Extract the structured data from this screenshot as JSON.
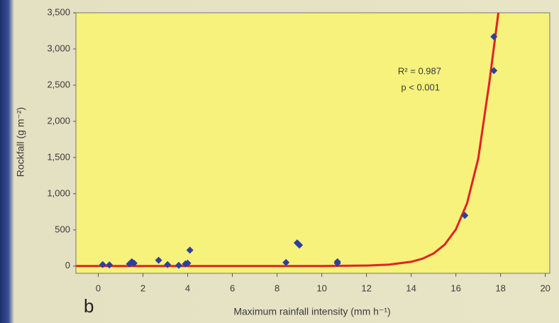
{
  "chart_data": {
    "type": "scatter",
    "xlabel": "Maximum rainfall intensity (mm h⁻¹)",
    "ylabel": "Rockfall (g m⁻²)",
    "panel_label": "b",
    "annotations": [
      "R² = 0.987",
      "p < 0.001"
    ],
    "xlim": [
      -1,
      20.2
    ],
    "xticks": [
      0,
      2,
      4,
      6,
      8,
      10,
      12,
      14,
      16,
      18,
      20
    ],
    "ylim": [
      -100,
      3500
    ],
    "yticks": [
      0,
      500,
      {
        "value": 1000,
        "label": "1,000"
      },
      {
        "value": 1500,
        "label": "1,500"
      },
      {
        "value": 2000,
        "label": "2,000"
      },
      {
        "value": 2500,
        "label": "2,500"
      },
      {
        "value": 3000,
        "label": "3,000"
      },
      {
        "value": 3500,
        "label": "3,500"
      }
    ],
    "points": {
      "color": "#2e3f9e",
      "x": [
        0.2,
        0.5,
        1.4,
        1.5,
        1.6,
        2.7,
        3.1,
        3.6,
        3.9,
        4.0,
        4.1,
        8.4,
        8.9,
        9.0,
        10.7,
        10.7,
        16.4,
        17.7,
        17.7
      ],
      "values": [
        20,
        15,
        30,
        60,
        40,
        80,
        20,
        10,
        30,
        40,
        220,
        50,
        320,
        290,
        40,
        60,
        700,
        3170,
        2700
      ]
    },
    "fit": {
      "color": "#e02424",
      "x": [
        -1,
        0,
        2,
        4,
        6,
        8,
        10,
        12,
        13,
        14,
        14.5,
        15,
        15.5,
        16,
        16.5,
        17,
        17.5,
        17.9
      ],
      "values": [
        0,
        0,
        0,
        0,
        0,
        0,
        1,
        7,
        20,
        59,
        101,
        174,
        297,
        507,
        868,
        1485,
        2545,
        3500
      ]
    }
  }
}
